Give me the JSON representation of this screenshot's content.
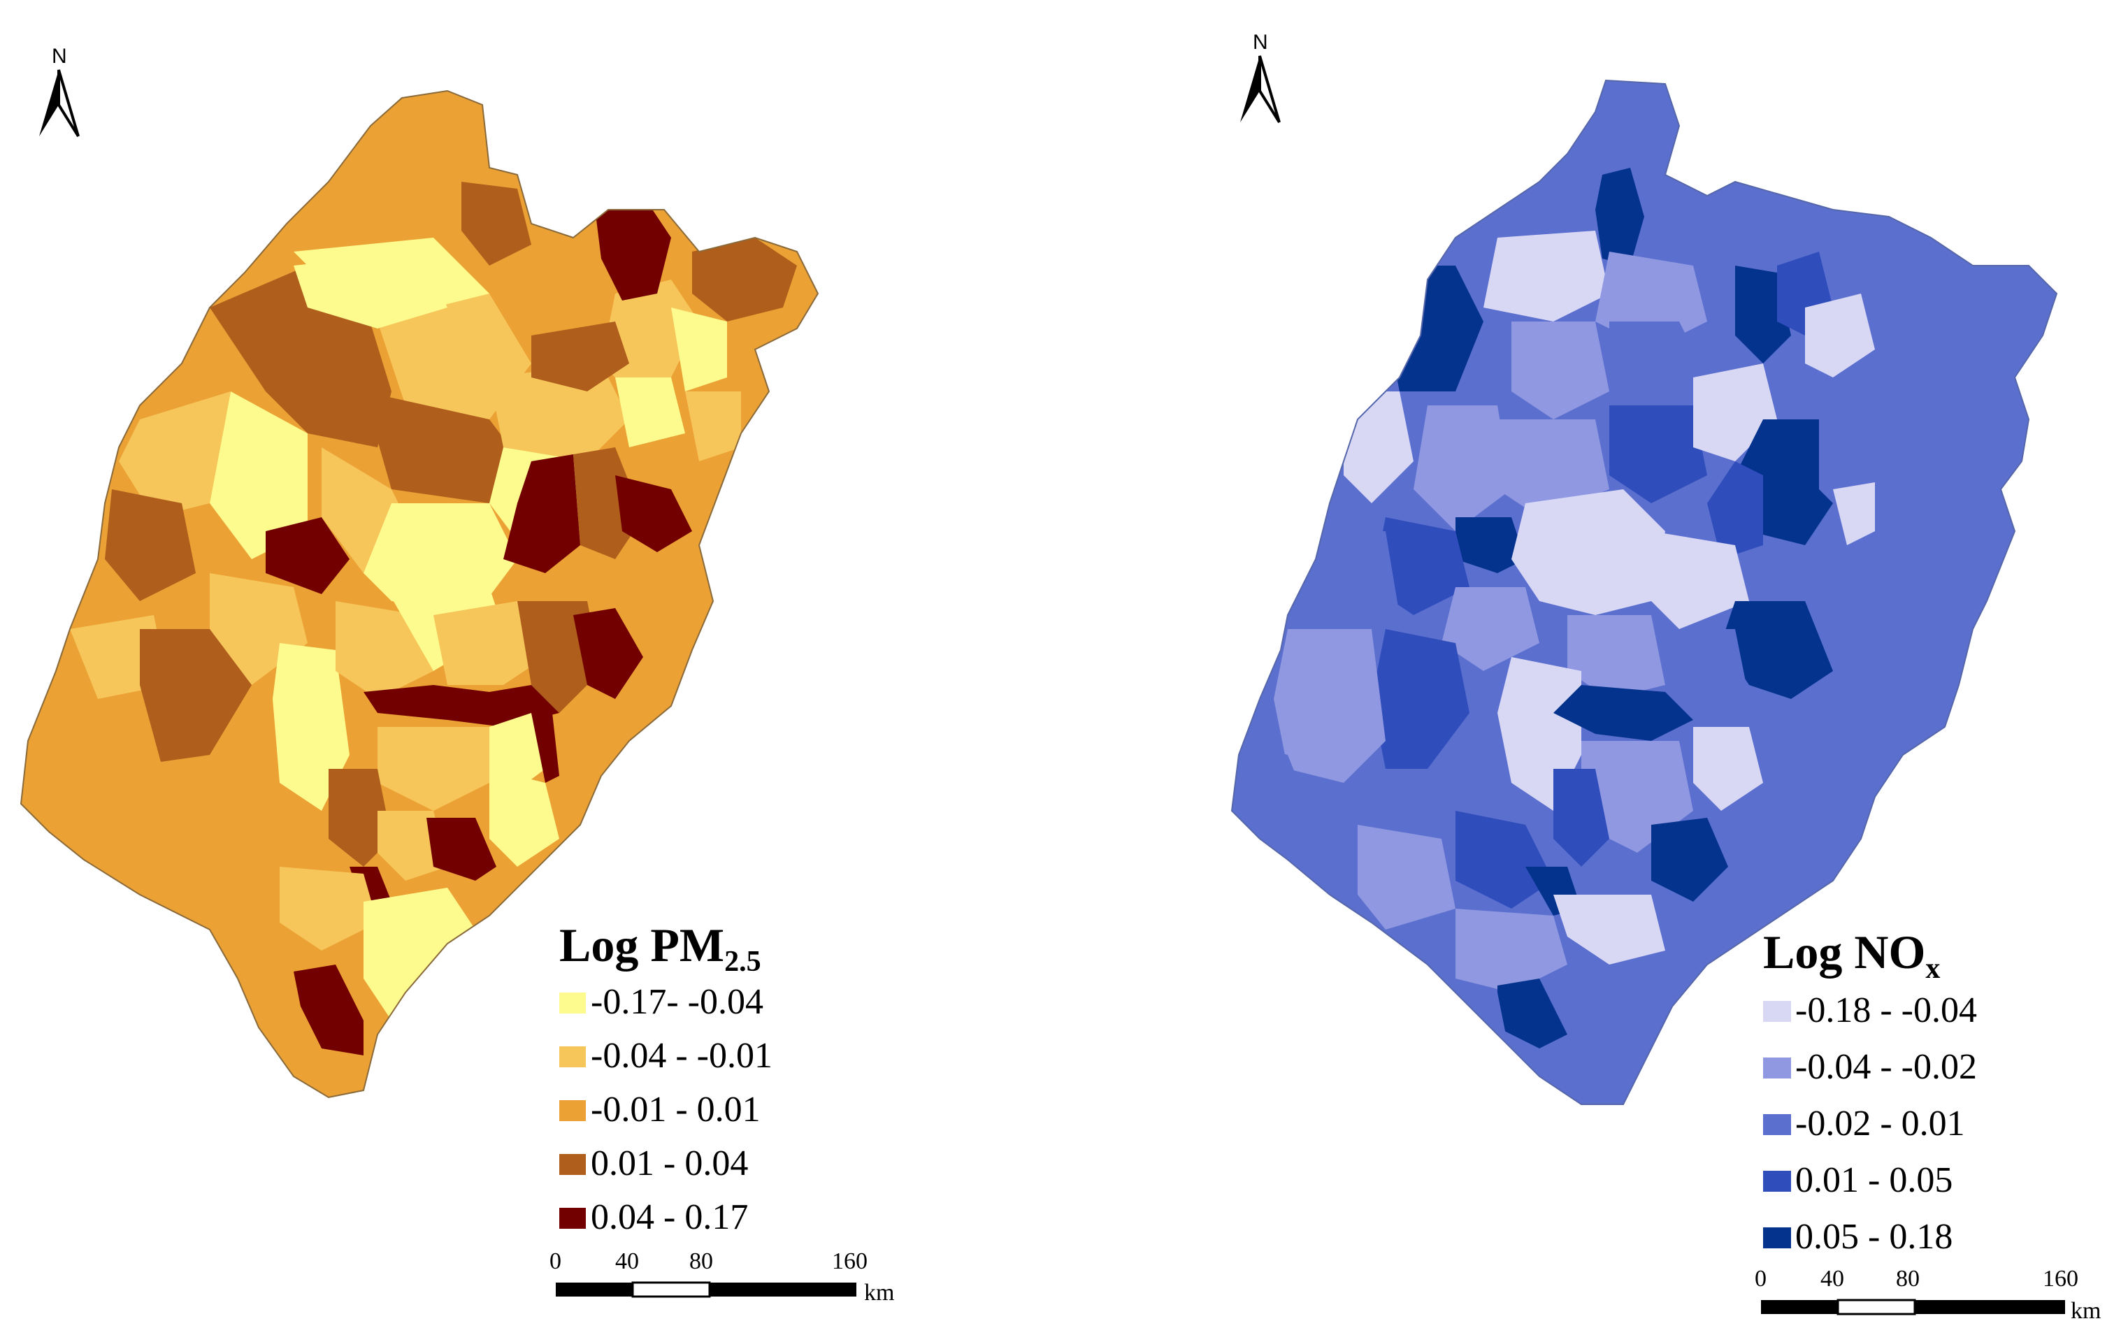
{
  "maps": [
    {
      "id": "pm25",
      "north": "N",
      "legend": {
        "title_main": "Log PM",
        "title_sub": "2.5",
        "classes": [
          {
            "label": "-0.17- -0.04",
            "color": "#fdfb8e"
          },
          {
            "label": "-0.04 - -0.01",
            "color": "#f6c65b"
          },
          {
            "label": "-0.01 - 0.01",
            "color": "#eba134"
          },
          {
            "label": "0.01 - 0.04",
            "color": "#b05e1c"
          },
          {
            "label": "0.04 - 0.17",
            "color": "#720000"
          }
        ]
      },
      "scale": {
        "ticks": [
          "0",
          "40",
          "80",
          "160"
        ],
        "unit": "km"
      }
    },
    {
      "id": "nox",
      "north": "N",
      "legend": {
        "title_main": "Log NO",
        "title_sub": "x",
        "classes": [
          {
            "label": "-0.18 - -0.04",
            "color": "#d8d8f5"
          },
          {
            "label": "-0.04 - -0.02",
            "color": "#8f98e0"
          },
          {
            "label": "-0.02 - 0.01",
            "color": "#5b6fcf"
          },
          {
            "label": "0.01 - 0.05",
            "color": "#2f4dbb"
          },
          {
            "label": "0.05 - 0.18",
            "color": "#04338e"
          }
        ]
      },
      "scale": {
        "ticks": [
          "0",
          "40",
          "80",
          "160"
        ],
        "unit": "km"
      }
    }
  ]
}
